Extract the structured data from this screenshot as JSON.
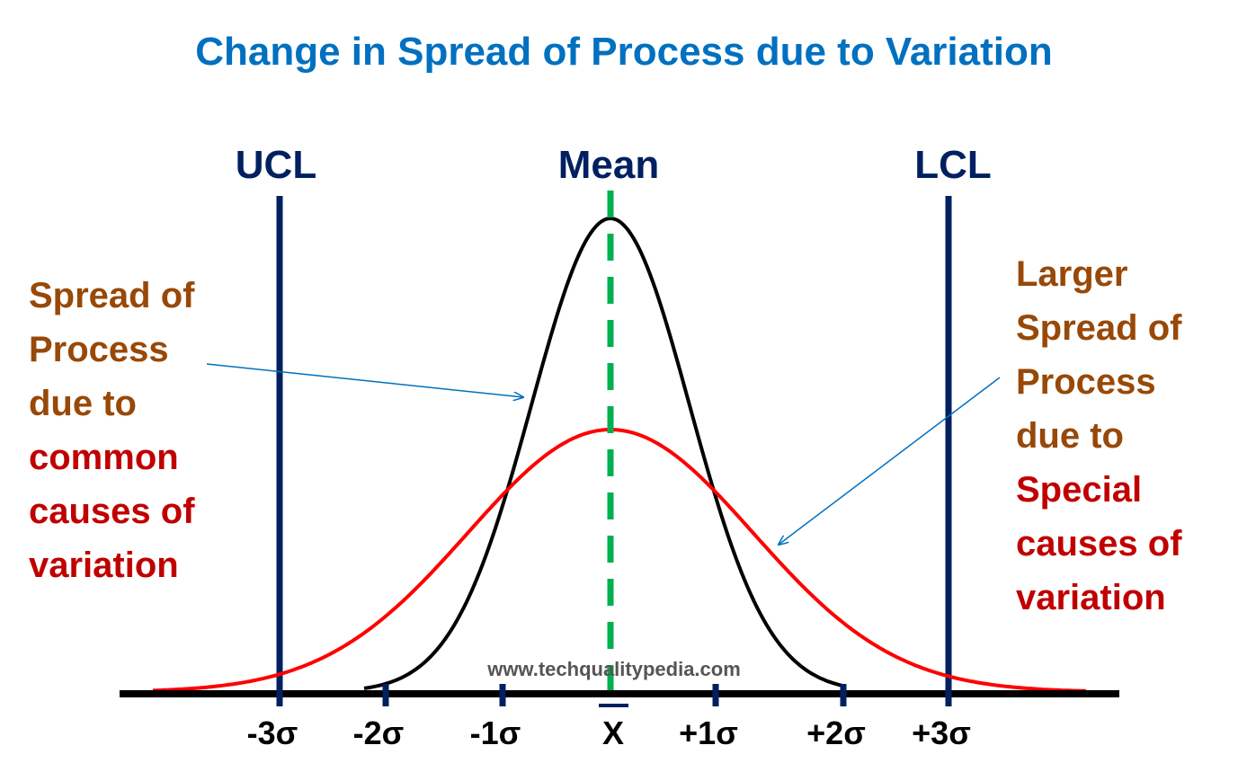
{
  "title": "Change in Spread of Process due to Variation",
  "labels": {
    "ucl": "UCL",
    "mean": "Mean",
    "lcl": "LCL"
  },
  "ticks": [
    "-3σ",
    "-2σ",
    "-1σ",
    "X",
    "+1σ",
    "+2σ",
    "+3σ"
  ],
  "left_note": {
    "brown_lines": [
      "Spread of",
      "Process",
      "due to"
    ],
    "red_lines": [
      "common",
      "causes of",
      "variation"
    ]
  },
  "right_note": {
    "brown_lines": [
      "Larger",
      "Spread of",
      "Process",
      "due to"
    ],
    "red_lines": [
      "Special",
      "causes of",
      "variation"
    ]
  },
  "watermark": "www.techqualitypedia.com",
  "curves": [
    {
      "name": "common-cause-distribution",
      "color": "#000000",
      "sigma_units": 0.72
    },
    {
      "name": "special-cause-distribution",
      "color": "#ff0000",
      "sigma_units": 1.3
    }
  ],
  "colors": {
    "title": "#0070c0",
    "navy": "#002060",
    "brown": "#984807",
    "red": "#c00000",
    "mean_line": "#00b050",
    "arrow": "#0070c0"
  }
}
